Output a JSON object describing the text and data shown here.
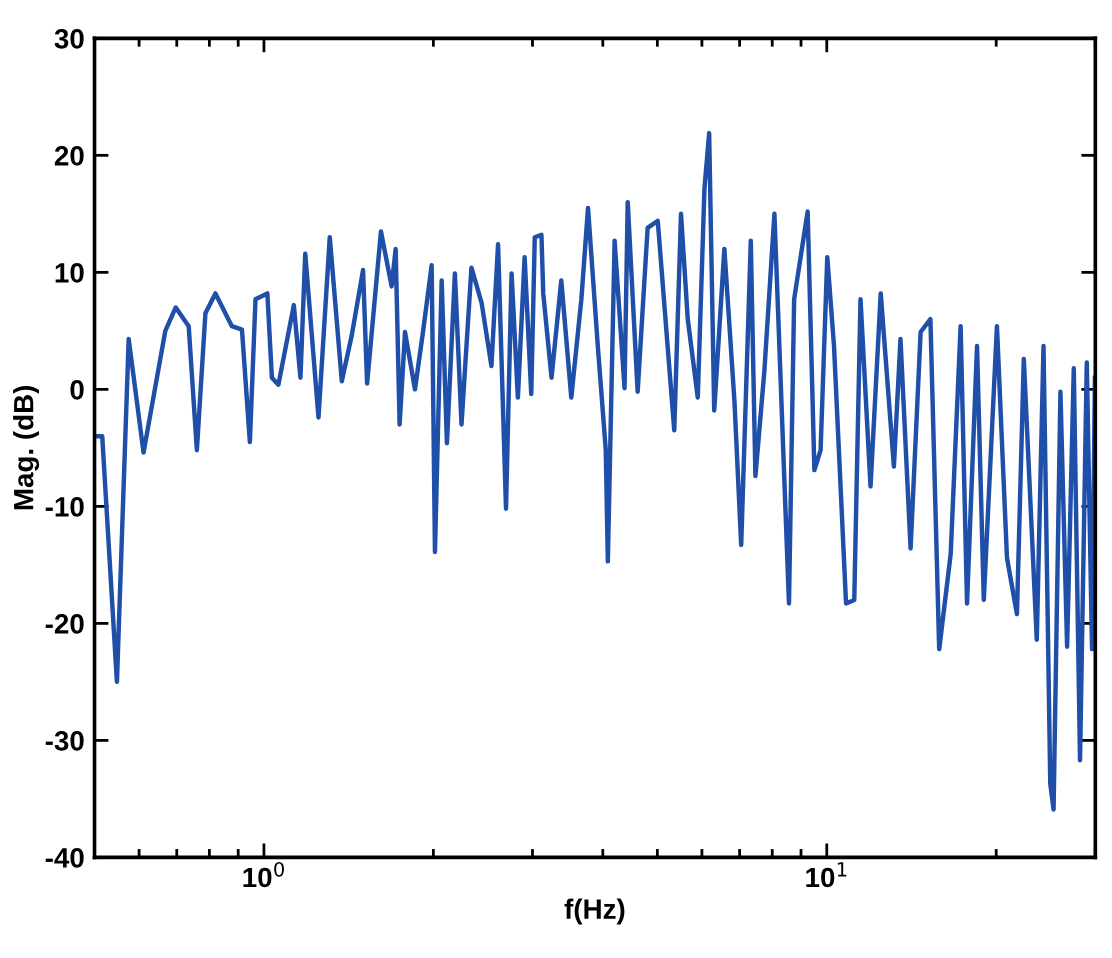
{
  "chart_data": {
    "type": "line",
    "xlabel": "f(Hz)",
    "ylabel": "Mag. (dB)",
    "log": "x",
    "grid": false,
    "marker": "none",
    "line_style": "solid",
    "xlim": [
      0.5,
      30
    ],
    "ylim": [
      -40,
      30
    ],
    "xticks": [
      {
        "value": 1,
        "label": "10$^{0}$"
      },
      {
        "value": 10,
        "label": "10$^{1}$"
      }
    ],
    "yticks": [
      -40,
      -30,
      -20,
      -10,
      0,
      10,
      20,
      30
    ],
    "series": [
      {
        "color": "#1f4fa8",
        "x": [
          0.502,
          0.516,
          0.548,
          0.575,
          0.611,
          0.668,
          0.697,
          0.735,
          0.76,
          0.787,
          0.82,
          0.877,
          0.914,
          0.944,
          0.966,
          1.014,
          1.033,
          1.061,
          1.13,
          1.161,
          1.184,
          1.25,
          1.309,
          1.375,
          1.432,
          1.5,
          1.525,
          1.614,
          1.686,
          1.714,
          1.742,
          1.781,
          1.855,
          1.918,
          1.986,
          2.013,
          2.069,
          2.114,
          2.184,
          2.244,
          2.337,
          2.436,
          2.536,
          2.606,
          2.692,
          2.754,
          2.826,
          2.905,
          2.985,
          3.028,
          3.112,
          3.135,
          3.243,
          3.375,
          3.516,
          3.664,
          3.765,
          3.919,
          4.049,
          4.083,
          4.198,
          4.372,
          4.429,
          4.613,
          4.805,
          5.008,
          5.358,
          5.508,
          5.662,
          5.899,
          6.063,
          6.18,
          6.31,
          6.577,
          6.854,
          7.046,
          7.328,
          7.468,
          7.745,
          8.072,
          8.567,
          8.75,
          9.247,
          9.506,
          9.75,
          10.02,
          10.3,
          10.82,
          11.19,
          11.48,
          11.96,
          12.47,
          13.16,
          13.52,
          14.09,
          14.68,
          15.28,
          15.84,
          16.6,
          17.29,
          17.75,
          18.49,
          19.01,
          20.06,
          20.9,
          21.77,
          22.39,
          23.61,
          24.27,
          24.95,
          25.29,
          26.01,
          26.73,
          27.47,
          28.18,
          28.97,
          29.6,
          29.95
        ],
        "values": [
          -4,
          -4,
          -25,
          4.3,
          -5.4,
          5,
          7,
          5.4,
          -5.2,
          6.5,
          8.2,
          5.4,
          5.1,
          -4.5,
          7.7,
          8.2,
          1,
          0.4,
          7.2,
          1,
          11.6,
          -2.4,
          13,
          0.7,
          4.6,
          10.2,
          0.5,
          13.5,
          8.8,
          12,
          -3,
          4.9,
          0,
          5,
          10.6,
          -13.9,
          9.3,
          -4.6,
          9.9,
          -3,
          10.4,
          7.4,
          2,
          12.4,
          -10.2,
          9.9,
          -0.7,
          11.3,
          -0.4,
          13,
          13.2,
          8.2,
          1,
          9.3,
          -0.7,
          7.7,
          15.5,
          3.7,
          -5.2,
          -14.7,
          12.7,
          0.1,
          16,
          -0.2,
          13.8,
          14.4,
          -3.5,
          15,
          6,
          -0.7,
          17.2,
          21.9,
          -1.8,
          12,
          -1,
          -13.3,
          12.7,
          -7.4,
          1.5,
          15,
          -18.3,
          7.7,
          15.2,
          -6.9,
          -5.2,
          11.3,
          3.7,
          -18.3,
          -18,
          7.7,
          -8.3,
          8.2,
          -6.6,
          4.3,
          -13.6,
          4.9,
          6,
          -22.2,
          -14.1,
          5.4,
          -18.3,
          3.7,
          -18,
          5.4,
          -14.4,
          -19.2,
          2.6,
          -21.4,
          3.7,
          -33.7,
          -35.9,
          -0.2,
          -22,
          1.8,
          -31.7,
          2.3,
          -22.2,
          1
        ]
      }
    ]
  }
}
